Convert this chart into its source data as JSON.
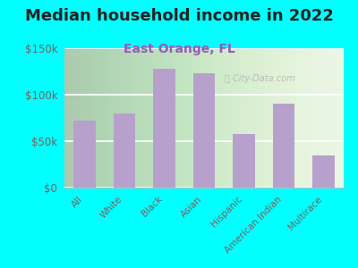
{
  "title": "Median household income in 2022",
  "subtitle": "East Orange, FL",
  "categories": [
    "All",
    "White",
    "Black",
    "Asian",
    "Hispanic",
    "American Indian",
    "Multirace"
  ],
  "values": [
    72000,
    80000,
    128000,
    123000,
    58000,
    90000,
    35000
  ],
  "bar_color": "#b8a0cc",
  "background_color": "#00ffff",
  "plot_bg_color": "#e8f5e0",
  "title_color": "#222222",
  "subtitle_color": "#9b59b6",
  "tick_color": "#7a6060",
  "watermark": "ⓘ City-Data.com",
  "ylim": [
    0,
    150000
  ],
  "yticks": [
    0,
    50000,
    100000,
    150000
  ],
  "ytick_labels": [
    "$0",
    "$50k",
    "$100k",
    "$150k"
  ],
  "title_fontsize": 13,
  "subtitle_fontsize": 10,
  "bar_width": 0.55
}
